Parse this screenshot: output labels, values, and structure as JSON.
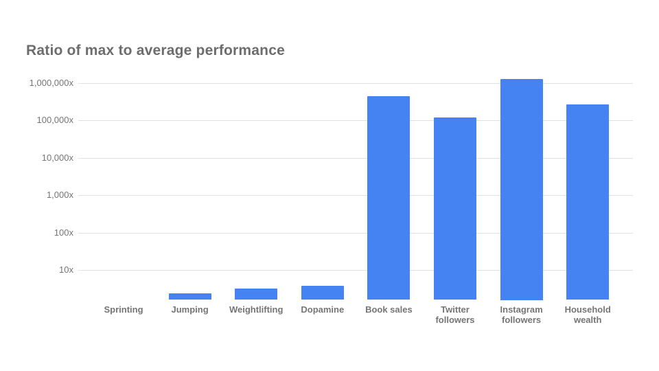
{
  "chart": {
    "colors": {
      "bar": "#4483f1",
      "grid": "#e0e0e0",
      "tick_text": "#757575",
      "label_text": "#757575",
      "title_text": "#6d6d6d",
      "background": "#ffffff"
    }
  },
  "chart_data": {
    "type": "bar",
    "title": "Ratio of max to average performance",
    "categories": [
      "Sprinting",
      "Jumping",
      "Weightlifting",
      "Dopamine",
      "Book sales",
      "Twitter followers",
      "Instagram followers",
      "Household wealth"
    ],
    "values": [
      1.5,
      2.4,
      3.2,
      3.8,
      450000,
      120000,
      1300000,
      270000
    ],
    "xlabel": "",
    "ylabel": "",
    "y_axis": {
      "scale": "log",
      "tick_labels": [
        "1,000,000x",
        "100,000x",
        "10,000x",
        "1,000x",
        "100x",
        "10x"
      ],
      "tick_values": [
        1000000,
        100000,
        10000,
        1000,
        100,
        10
      ],
      "axis_min": 1.6,
      "axis_max": 2400000
    },
    "grid": true,
    "legend": "none"
  }
}
